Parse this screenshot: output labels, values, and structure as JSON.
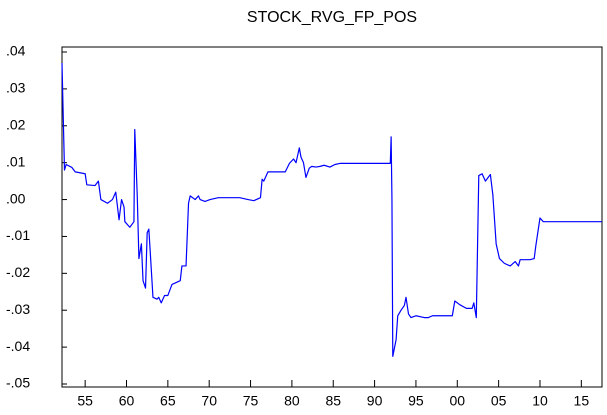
{
  "chart_data": {
    "type": "line",
    "title": "STOCK_RVG_FP_POS",
    "series": [
      {
        "color": "#0000ff",
        "x": [
          1952.2,
          1952.5,
          1952.7,
          1953.4,
          1953.8,
          1955.0,
          1955.2,
          1956.2,
          1956.6,
          1956.9,
          1957.7,
          1958.3,
          1958.7,
          1959.1,
          1959.4,
          1959.7,
          1959.8,
          1960.4,
          1960.9,
          1961.0,
          1961.3,
          1961.5,
          1961.8,
          1962.0,
          1962.3,
          1962.5,
          1962.7,
          1963.0,
          1963.2,
          1963.7,
          1963.9,
          1964.2,
          1964.6,
          1965.0,
          1965.5,
          1966.0,
          1966.5,
          1966.7,
          1967.2,
          1967.5,
          1967.7,
          1968.3,
          1968.7,
          1968.9,
          1969.5,
          1970.1,
          1971.1,
          1973.7,
          1974.7,
          1975.4,
          1976.2,
          1976.4,
          1976.6,
          1977.1,
          1979.2,
          1979.7,
          1980.2,
          1980.5,
          1980.9,
          1981.1,
          1981.4,
          1981.7,
          1982.1,
          1982.4,
          1982.9,
          1983.4,
          1983.9,
          1984.6,
          1985.2,
          1985.8,
          1986.8,
          1991.9,
          1992.0,
          1992.1,
          1992.2,
          1992.6,
          1992.8,
          1993.2,
          1993.6,
          1993.8,
          1994.1,
          1994.4,
          1995.0,
          1996.0,
          1996.5,
          1997.0,
          1999.4,
          1999.7,
          2000.3,
          2001.1,
          2001.8,
          2002.0,
          2002.3,
          2002.6,
          2003.0,
          2003.4,
          2004.0,
          2004.3,
          2004.7,
          2005.1,
          2005.7,
          2006.4,
          2007.0,
          2007.4,
          2007.6,
          2008.8,
          2009.3,
          2009.5,
          2010.0,
          2010.4,
          2011.0,
          2012.4,
          2017.5
        ],
        "values": [
          0.037,
          0.008,
          0.0095,
          0.0087,
          0.0075,
          0.007,
          0.004,
          0.0038,
          0.005,
          0.0,
          -0.001,
          0.0,
          0.002,
          -0.0055,
          0.0,
          -0.002,
          -0.006,
          -0.0075,
          -0.006,
          0.019,
          0.001,
          -0.016,
          -0.012,
          -0.022,
          -0.024,
          -0.009,
          -0.008,
          -0.019,
          -0.0265,
          -0.027,
          -0.0265,
          -0.028,
          -0.026,
          -0.026,
          -0.023,
          -0.0225,
          -0.022,
          -0.018,
          -0.018,
          -0.001,
          0.001,
          0.0,
          0.001,
          0.0,
          -0.0005,
          0.0,
          0.0005,
          0.0005,
          0.0,
          -0.0003,
          0.0005,
          0.0055,
          0.005,
          0.0075,
          0.0075,
          0.0098,
          0.011,
          0.01,
          0.014,
          0.0115,
          0.01,
          0.006,
          0.0085,
          0.009,
          0.0088,
          0.009,
          0.0093,
          0.0088,
          0.0095,
          0.0098,
          0.0098,
          0.0098,
          0.017,
          0.0,
          -0.0425,
          -0.038,
          -0.0315,
          -0.03,
          -0.0287,
          -0.0265,
          -0.031,
          -0.032,
          -0.0315,
          -0.032,
          -0.032,
          -0.0315,
          -0.0315,
          -0.0275,
          -0.0285,
          -0.0295,
          -0.0295,
          -0.028,
          -0.032,
          0.0065,
          0.007,
          0.005,
          0.0068,
          0.0013,
          -0.012,
          -0.016,
          -0.0173,
          -0.018,
          -0.0168,
          -0.018,
          -0.0163,
          -0.0163,
          -0.016,
          -0.0125,
          -0.005,
          -0.006,
          -0.006,
          -0.006,
          -0.006
        ]
      }
    ],
    "xlim": [
      1952.2,
      2017.5
    ],
    "xticks": [
      {
        "value": 1955,
        "label": "55"
      },
      {
        "value": 1960,
        "label": "60"
      },
      {
        "value": 1965,
        "label": "65"
      },
      {
        "value": 1970,
        "label": "70"
      },
      {
        "value": 1975,
        "label": "75"
      },
      {
        "value": 1980,
        "label": "80"
      },
      {
        "value": 1985,
        "label": "85"
      },
      {
        "value": 1990,
        "label": "90"
      },
      {
        "value": 1995,
        "label": "95"
      },
      {
        "value": 2000,
        "label": "00"
      },
      {
        "value": 2005,
        "label": "05"
      },
      {
        "value": 2010,
        "label": "10"
      },
      {
        "value": 2015,
        "label": "15"
      }
    ],
    "ylim": [
      -0.05,
      0.04
    ],
    "yticks": [
      {
        "value": 0.04,
        "label": ".04"
      },
      {
        "value": 0.03,
        "label": ".03"
      },
      {
        "value": 0.02,
        "label": ".02"
      },
      {
        "value": 0.01,
        "label": ".01"
      },
      {
        "value": 0.0,
        "label": ".00"
      },
      {
        "value": -0.01,
        "label": "-.01"
      },
      {
        "value": -0.02,
        "label": "-.02"
      },
      {
        "value": -0.03,
        "label": "-.03"
      },
      {
        "value": -0.04,
        "label": "-.04"
      },
      {
        "value": -0.05,
        "label": "-.05"
      }
    ],
    "grid": false
  }
}
